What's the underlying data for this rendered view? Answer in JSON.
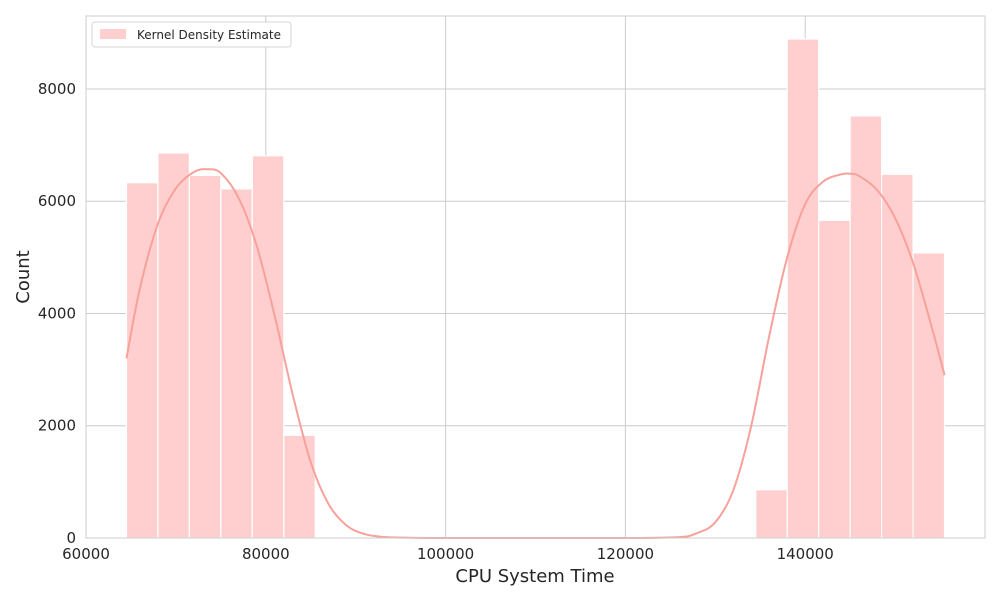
{
  "chart_data": {
    "type": "bar",
    "subtype": "histogram-with-kde",
    "title": "",
    "xlabel": "CPU System Time",
    "ylabel": "Count",
    "xlim": [
      60000,
      160000
    ],
    "ylim": [
      0,
      9300
    ],
    "xticks": [
      60000,
      80000,
      100000,
      120000,
      140000
    ],
    "yticks": [
      0,
      2000,
      4000,
      6000,
      8000
    ],
    "grid": true,
    "legend_position": "top-left",
    "legend_entries": [
      "Kernel Density Estimate"
    ],
    "colors": {
      "bar": "#ffcfcf",
      "kde": "#f8a19b",
      "grid": "#cccccc",
      "frame": "#cccccc"
    },
    "bins": [
      {
        "x0": 64500,
        "x1": 68000,
        "count": 6330
      },
      {
        "x0": 68000,
        "x1": 71500,
        "count": 6860
      },
      {
        "x0": 71500,
        "x1": 75000,
        "count": 6460
      },
      {
        "x0": 75000,
        "x1": 78500,
        "count": 6220
      },
      {
        "x0": 78500,
        "x1": 82000,
        "count": 6810
      },
      {
        "x0": 82000,
        "x1": 85500,
        "count": 1830
      },
      {
        "x0": 134500,
        "x1": 138000,
        "count": 860
      },
      {
        "x0": 138000,
        "x1": 141500,
        "count": 8890
      },
      {
        "x0": 141500,
        "x1": 145000,
        "count": 5660
      },
      {
        "x0": 145000,
        "x1": 148500,
        "count": 7520
      },
      {
        "x0": 148500,
        "x1": 152000,
        "count": 6480
      },
      {
        "x0": 152000,
        "x1": 155500,
        "count": 5080
      }
    ],
    "kde": {
      "x": [
        64500,
        66000,
        68000,
        70000,
        72000,
        73500,
        75000,
        77000,
        79000,
        81000,
        83000,
        85000,
        87000,
        89000,
        91000,
        93000,
        96000,
        100000,
        110000,
        120000,
        126000,
        128000,
        130000,
        132000,
        134000,
        136000,
        138000,
        140000,
        142000,
        144000,
        145000,
        146000,
        148000,
        150000,
        152000,
        154000,
        155500
      ],
      "y": [
        3200,
        4450,
        5600,
        6230,
        6520,
        6570,
        6500,
        6050,
        5200,
        3950,
        2550,
        1350,
        600,
        220,
        70,
        20,
        5,
        0,
        0,
        0,
        15,
        90,
        280,
        850,
        2000,
        3600,
        5000,
        5950,
        6350,
        6480,
        6490,
        6450,
        6200,
        5700,
        4900,
        3800,
        2900
      ]
    }
  }
}
